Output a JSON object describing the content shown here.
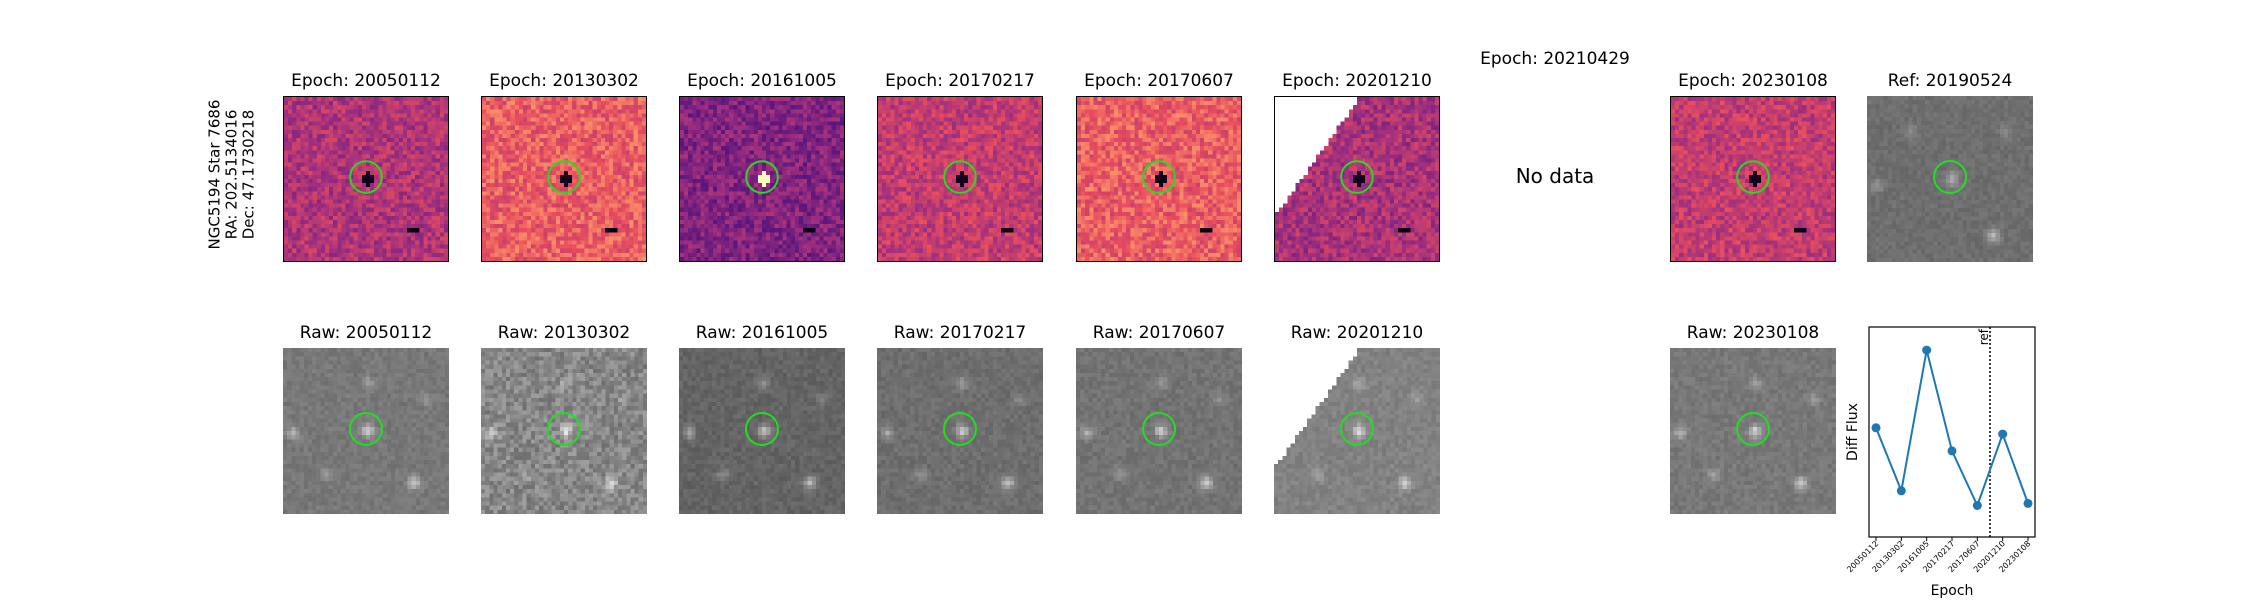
{
  "star_label": {
    "line1": "NGC5194 Star 7686",
    "line2": "RA: 202.5134016",
    "line3": "Dec: 47.1730218"
  },
  "diff_panels": [
    {
      "title": "Epoch: 20050112",
      "style": "magma-dim",
      "has_data": true
    },
    {
      "title": "Epoch: 20130302",
      "style": "magma-bright",
      "has_data": true
    },
    {
      "title": "Epoch: 20161005",
      "style": "magma-dark",
      "has_data": true
    },
    {
      "title": "Epoch: 20170217",
      "style": "magma-mid",
      "has_data": true
    },
    {
      "title": "Epoch: 20170607",
      "style": "magma-bright",
      "has_data": true
    },
    {
      "title": "Epoch: 20201210",
      "style": "magma-edge",
      "has_data": true
    },
    {
      "title": "Epoch: 20210429",
      "style": "none",
      "has_data": false,
      "no_data_text": "No data"
    },
    {
      "title": "Epoch: 20230108",
      "style": "magma-mid",
      "has_data": true
    }
  ],
  "ref_panel": {
    "title": "Ref: 20190524"
  },
  "raw_panels": [
    {
      "title": "Raw: 20050112",
      "has_data": true
    },
    {
      "title": "Raw: 20130302",
      "has_data": true
    },
    {
      "title": "Raw: 20161005",
      "has_data": true
    },
    {
      "title": "Raw: 20170217",
      "has_data": true
    },
    {
      "title": "Raw: 20170607",
      "has_data": true
    },
    {
      "title": "Raw: 20201210",
      "has_data": true
    },
    {
      "title": "",
      "has_data": false
    },
    {
      "title": "Raw: 20230108",
      "has_data": true
    }
  ],
  "colors": {
    "aperture_ring": "#22dd22",
    "series_line": "#1f77b4",
    "ref_line": "#000000"
  },
  "chart_data": {
    "type": "line",
    "title": "",
    "xlabel": "Epoch",
    "ylabel": "Diff Flux",
    "categories": [
      "20050112",
      "20130302",
      "20161005",
      "20170217",
      "20170607",
      "20201210",
      "20230108"
    ],
    "values": [
      0.52,
      0.22,
      0.89,
      0.41,
      0.15,
      0.49,
      0.16
    ],
    "ylim": [
      0,
      1
    ],
    "ref_marker": {
      "label": "ref",
      "position_between": [
        "20170607",
        "20201210"
      ]
    },
    "grid": false
  }
}
